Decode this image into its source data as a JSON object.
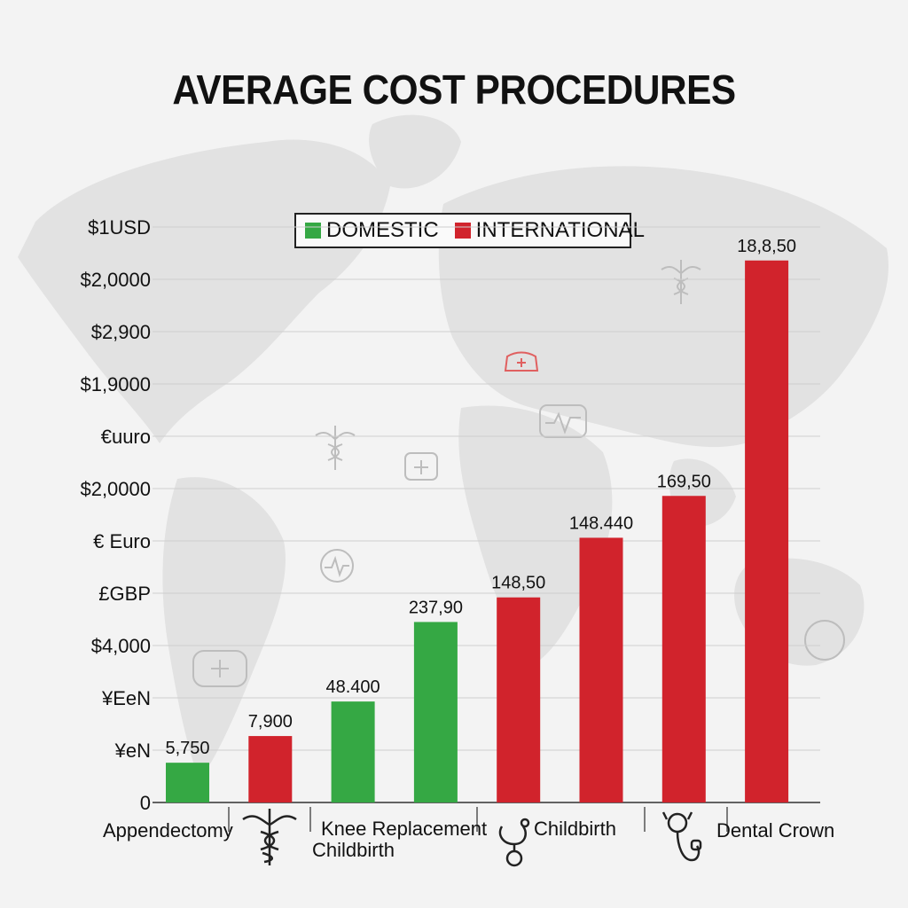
{
  "chart_data": {
    "type": "bar",
    "title": "AVERAGE COST PROCEDURES",
    "legend": {
      "position": "top-center",
      "entries": [
        {
          "name": "DOMESTIC",
          "color": "#35a844"
        },
        {
          "name": "INTERNATIONAL",
          "color": "#d1232c"
        }
      ]
    },
    "y_tick_labels": [
      "0",
      "¥eN",
      "¥EeN",
      "$4,000",
      "£GBP",
      "€ Euro",
      "$2,0000",
      "€uuro",
      "$1,9000",
      "$2,900",
      "$2,0000",
      "$1USD"
    ],
    "category_labels": [
      {
        "id": "appendectomy",
        "text": "Appendectomy"
      },
      {
        "id": "knee",
        "lines": [
          "Knee Replacement",
          "Childbirth"
        ]
      },
      {
        "id": "childbirth",
        "text": "Childbirth"
      },
      {
        "id": "dental",
        "text": "Dental Crown"
      }
    ],
    "ylim": [
      0,
      11
    ],
    "grid": true,
    "bars": [
      {
        "label": "5,750",
        "value": 0.76,
        "series": "DOMESTIC"
      },
      {
        "label": "7,900",
        "value": 1.27,
        "series": "INTERNATIONAL"
      },
      {
        "label": "48.400",
        "value": 1.93,
        "series": "DOMESTIC"
      },
      {
        "label": "237,90",
        "value": 3.45,
        "series": "DOMESTIC"
      },
      {
        "label": "148,50",
        "value": 3.92,
        "series": "INTERNATIONAL"
      },
      {
        "label": "148.440",
        "value": 5.06,
        "series": "INTERNATIONAL"
      },
      {
        "label": "169,50",
        "value": 5.86,
        "series": "INTERNATIONAL"
      },
      {
        "label": "18,8,50",
        "value": 10.36,
        "series": "INTERNATIONAL"
      }
    ]
  },
  "icons": {
    "background": [
      "world-map",
      "caduceus-icon",
      "medical-bag-icon",
      "heartbeat-icon",
      "nurse-cap-icon",
      "stethoscope-icon"
    ],
    "axis": [
      "caduceus-icon",
      "stethoscope-icon",
      "stethoscope-icon"
    ]
  }
}
